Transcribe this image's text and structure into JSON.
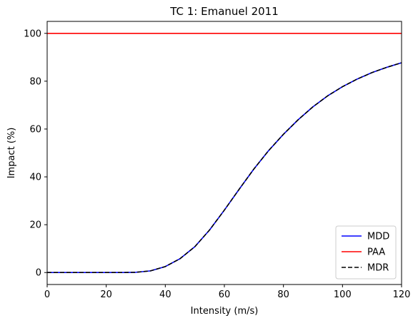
{
  "chart_data": {
    "type": "line",
    "title": "TC 1: Emanuel 2011",
    "xlabel": "Intensity (m/s)",
    "ylabel": "Impact (%)",
    "xlim": [
      0,
      120
    ],
    "ylim": [
      -5,
      105
    ],
    "xticks": [
      0,
      20,
      40,
      60,
      80,
      100,
      120
    ],
    "yticks": [
      0,
      20,
      40,
      60,
      80,
      100
    ],
    "grid": false,
    "legend_position": "lower-right",
    "x": [
      0,
      5,
      10,
      15,
      20,
      25,
      30,
      35,
      40,
      45,
      50,
      55,
      60,
      65,
      70,
      75,
      80,
      85,
      90,
      95,
      100,
      105,
      110,
      115,
      120
    ],
    "series": [
      {
        "name": "MDD",
        "color": "#0000ff",
        "dash": "solid",
        "values": [
          0,
          0,
          0,
          0,
          0,
          0,
          0.1,
          0.7,
          2.5,
          5.8,
          10.8,
          17.8,
          26.1,
          34.8,
          43.3,
          51.0,
          57.8,
          63.9,
          69.3,
          73.9,
          77.7,
          80.9,
          83.6,
          85.8,
          87.7
        ]
      },
      {
        "name": "PAA",
        "color": "#ff0000",
        "dash": "solid",
        "values": [
          100,
          100,
          100,
          100,
          100,
          100,
          100,
          100,
          100,
          100,
          100,
          100,
          100,
          100,
          100,
          100,
          100,
          100,
          100,
          100,
          100,
          100,
          100,
          100,
          100
        ]
      },
      {
        "name": "MDR",
        "color": "#000000",
        "dash": "dashed",
        "values": [
          0,
          0,
          0,
          0,
          0,
          0,
          0.1,
          0.7,
          2.5,
          5.8,
          10.8,
          17.8,
          26.1,
          34.8,
          43.3,
          51.0,
          57.8,
          63.9,
          69.3,
          73.9,
          77.7,
          80.9,
          83.6,
          85.8,
          87.7
        ]
      }
    ]
  }
}
